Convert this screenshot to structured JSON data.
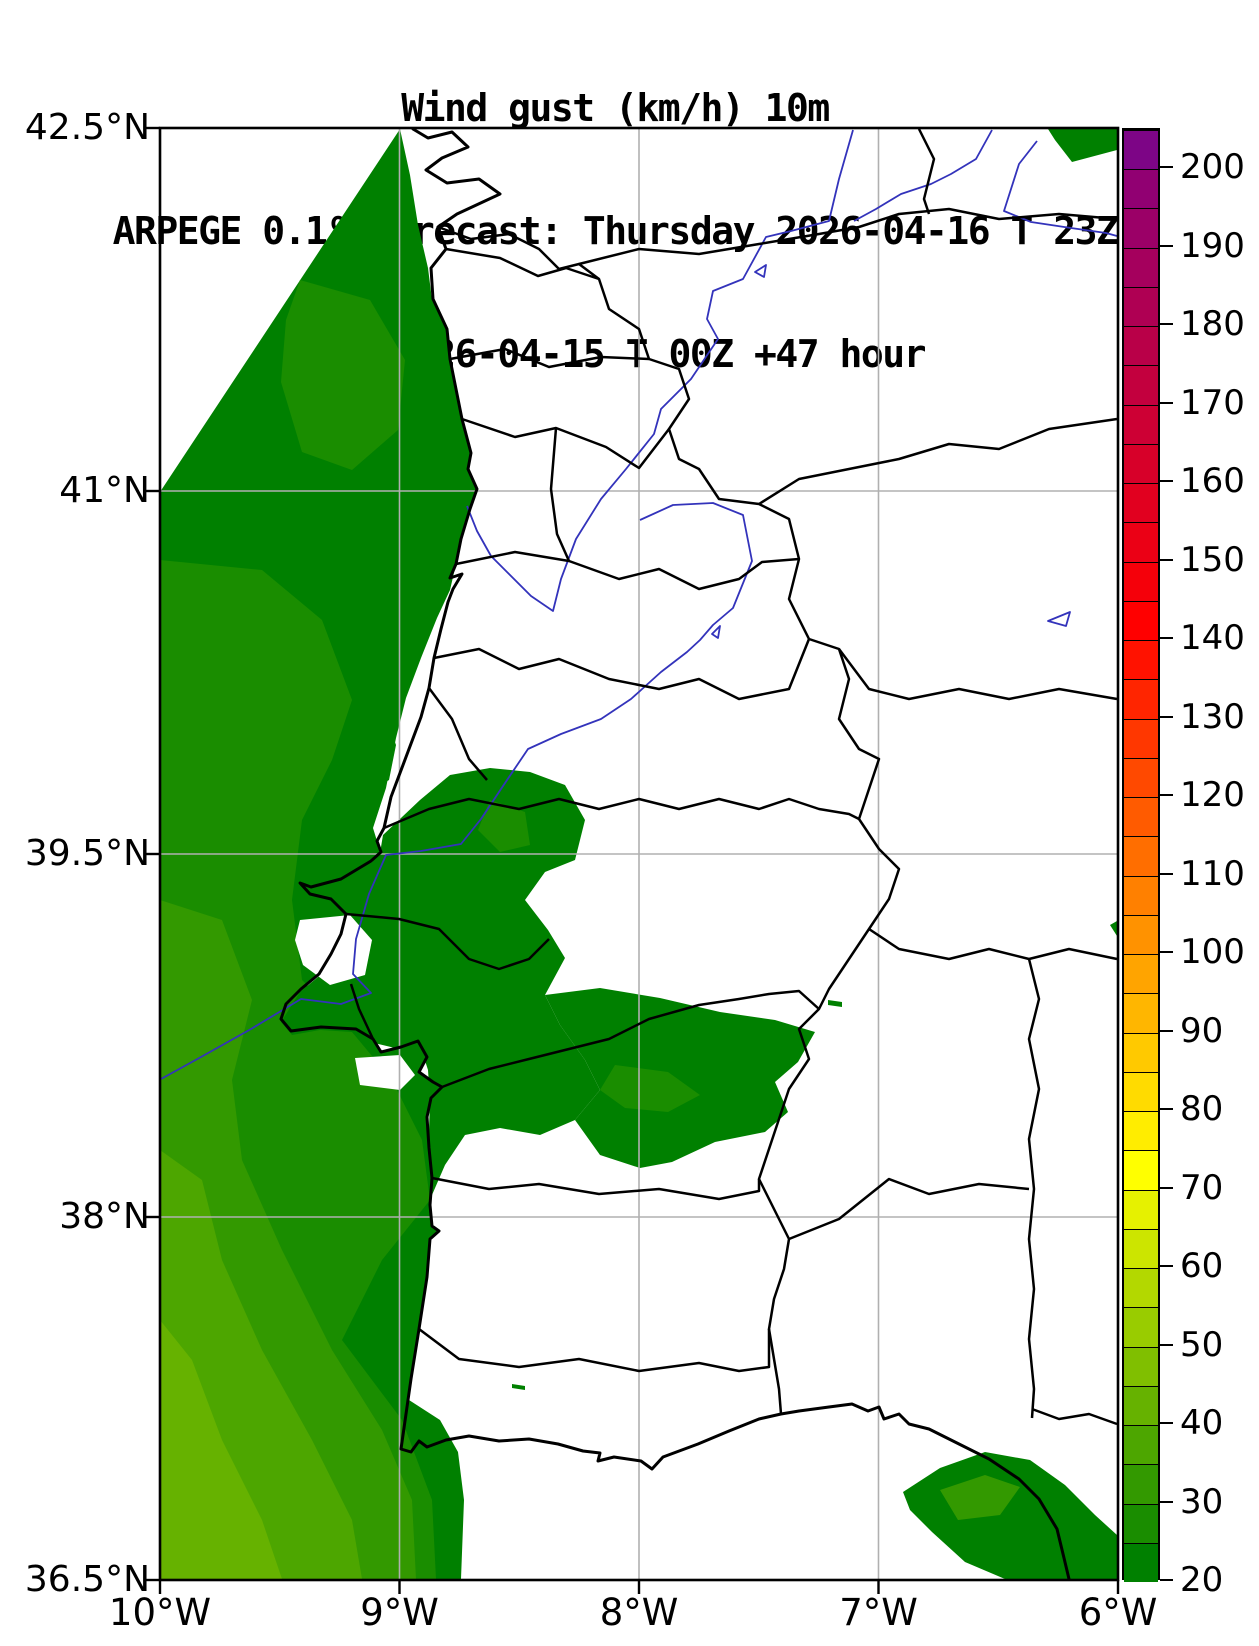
{
  "title": {
    "line1": "Wind gust (km/h) 10m",
    "line2": "ARPEGE 0.1º Forecast: Thursday 2026-04-16 T 23Z",
    "line3": "Run 2026-04-15 T 00Z +47 hour"
  },
  "variable": {
    "name": "Wind gust",
    "unit": "km/h",
    "level": "10m",
    "model": "ARPEGE 0.1º",
    "valid": "Thursday 2026-04-16 T 23Z",
    "run": "2026-04-15 T 00Z",
    "lead": "+47 hour"
  },
  "axes": {
    "lat_ticks": [
      {
        "label": "42.5°N",
        "lat": 42.5
      },
      {
        "label": "41°N",
        "lat": 41.0
      },
      {
        "label": "39.5°N",
        "lat": 39.5
      },
      {
        "label": "38°N",
        "lat": 38.0
      },
      {
        "label": "36.5°N",
        "lat": 36.5
      }
    ],
    "lon_ticks": [
      {
        "label": "10°W",
        "lon": -10
      },
      {
        "label": "9°W",
        "lon": -9
      },
      {
        "label": "8°W",
        "lon": -8
      },
      {
        "label": "7°W",
        "lon": -7
      },
      {
        "label": "6°W",
        "lon": -6
      }
    ],
    "lat_range": [
      36.5,
      42.5
    ],
    "lon_range": [
      -10,
      -6
    ],
    "grid": true
  },
  "colorbar": {
    "vmin": 20,
    "vmax": 205,
    "segment_step": 5,
    "ticks": [
      {
        "value": 200,
        "label": "200"
      },
      {
        "value": 190,
        "label": "190"
      },
      {
        "value": 180,
        "label": "180"
      },
      {
        "value": 170,
        "label": "170"
      },
      {
        "value": 160,
        "label": "160"
      },
      {
        "value": 150,
        "label": "150"
      },
      {
        "value": 140,
        "label": "140"
      },
      {
        "value": 130,
        "label": "130"
      },
      {
        "value": 120,
        "label": "120"
      },
      {
        "value": 110,
        "label": "110"
      },
      {
        "value": 100,
        "label": "100"
      },
      {
        "value": 90,
        "label": "90"
      },
      {
        "value": 80,
        "label": "80"
      },
      {
        "value": 70,
        "label": "70"
      },
      {
        "value": 60,
        "label": "60"
      },
      {
        "value": 50,
        "label": "50"
      },
      {
        "value": 40,
        "label": "40"
      },
      {
        "value": 30,
        "label": "30"
      },
      {
        "value": 20,
        "label": "20"
      }
    ],
    "colors": [
      "#008000",
      "#1a8d00",
      "#339900",
      "#4da600",
      "#66b200",
      "#80bf00",
      "#99cc00",
      "#b3d800",
      "#cce500",
      "#e6f100",
      "#ffff00",
      "#ffed00",
      "#ffdb00",
      "#ffc900",
      "#ffb600",
      "#ffa400",
      "#ff9200",
      "#ff8000",
      "#ff6e00",
      "#ff5b00",
      "#ff4900",
      "#ff3700",
      "#ff2500",
      "#ff1200",
      "#ff0000",
      "#f5000a",
      "#eb0015",
      "#e1001f",
      "#d70029",
      "#cd0034",
      "#c3003e",
      "#b90048",
      "#af0053",
      "#a5005d",
      "#9b0067",
      "#910072",
      "#7d0586"
    ]
  },
  "map_colors": {
    "land": "#ffffff",
    "sea_no_data": "#ffffff",
    "gust_20_25": "#008000",
    "gust_25_30": "#1a8d00",
    "gust_30_35": "#339900",
    "gust_35_40": "#4da600",
    "gust_40_45": "#66b200",
    "coast_border": "#000000",
    "rivers": "#3333bb",
    "gridline": "#b0b0b0"
  },
  "map_summary": {
    "shaded_values_km_h": [
      20,
      45
    ],
    "region": "Portugal and western Spain, 36.5N-42.5N, 10W-6W",
    "max_shading": "light green (40-45 km/h) offshore to the southwest"
  }
}
